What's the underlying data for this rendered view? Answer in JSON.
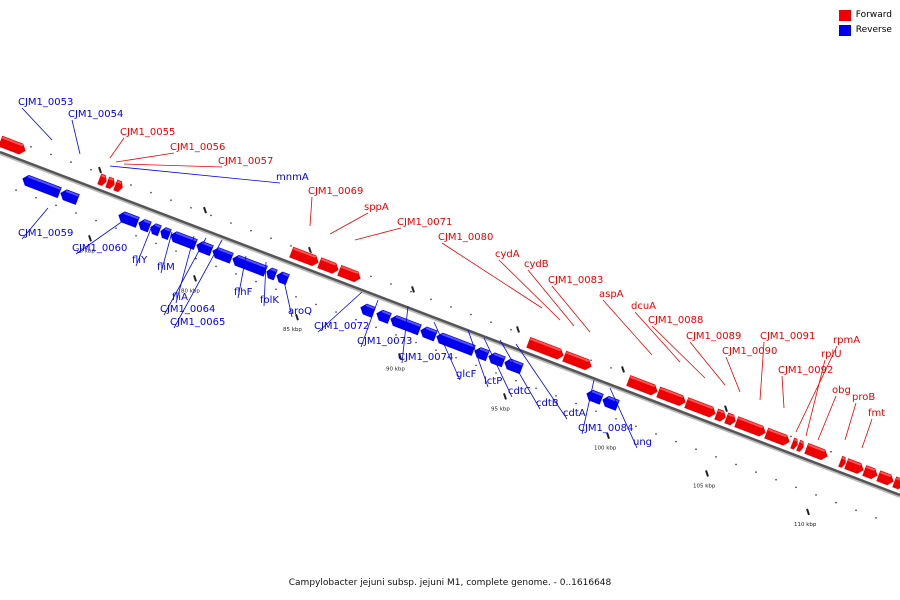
{
  "legend": {
    "forward": {
      "label": "Forward",
      "color": "#ee0000"
    },
    "reverse": {
      "label": "Reverse",
      "color": "#0000ee"
    }
  },
  "caption": "Campylobacter jejuni subsp. jejuni M1, complete genome. - 0..1616648",
  "track": {
    "axis_color": "#555555",
    "tick_color": "#222222"
  },
  "scale_labels": [
    "75 kbp",
    "80 kbp",
    "85 kbp",
    "90 kbp",
    "95 kbp",
    "100 kbp",
    "105 kbp",
    "110 kbp"
  ],
  "genes_forward": [
    "CJM1_0055",
    "CJM1_0056",
    "CJM1_0057",
    "CJM1_0069",
    "sppA",
    "CJM1_0071",
    "CJM1_0080",
    "cydA",
    "cydB",
    "CJM1_0083",
    "aspA",
    "dcuA",
    "CJM1_0088",
    "CJM1_0089",
    "CJM1_0090",
    "CJM1_0091",
    "CJM1_0092",
    "rpmA",
    "rplU",
    "obg",
    "proB",
    "fmt"
  ],
  "genes_reverse": [
    "CJM1_0053",
    "CJM1_0054",
    "mnmA",
    "CJM1_0059",
    "CJM1_0060",
    "fliY",
    "fliM",
    "fliA",
    "CJM1_0064",
    "CJM1_0065",
    "flhF",
    "folK",
    "aroQ",
    "CJM1_0072",
    "CJM1_0073",
    "CJM1_0074",
    "glcF",
    "lctP",
    "cdtC",
    "cdtB",
    "cdtA",
    "CJM1_0084",
    "ung"
  ]
}
